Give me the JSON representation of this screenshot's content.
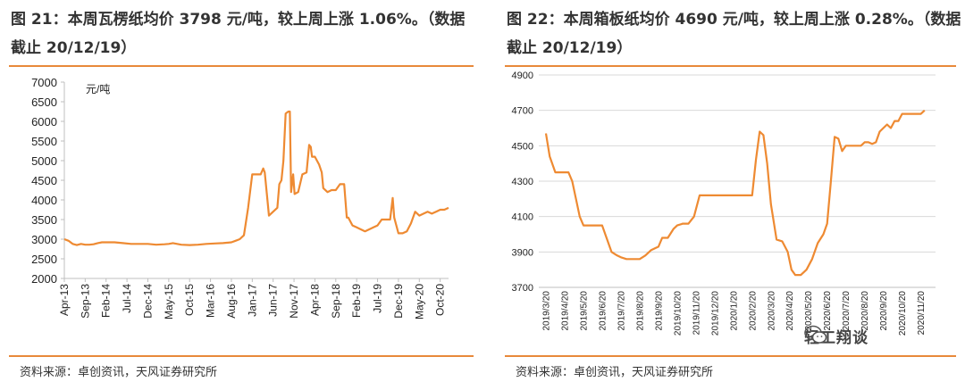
{
  "charts": [
    {
      "title": "图 21：本周瓦楞纸均价 3798 元/吨，较上周上涨 1.06%。（数据截止 20/12/19）",
      "source": "资料来源：卓创资讯，天风证券研究所",
      "unit": "元/吨"
    },
    {
      "title": "图 22：本周箱板纸均价 4690 元/吨，较上周上涨 0.28%。（数据截止 20/12/19）",
      "source": "资料来源：卓创资讯，天风证券研究所",
      "watermark": "轻工翔谈"
    }
  ],
  "colors": {
    "line": "#ee8a32",
    "rule": "#e8893a",
    "axis": "#bfbfbf",
    "grid": "#d9d9d9"
  },
  "icons": {
    "watermark": "wechat-icon"
  },
  "chart_data": [
    {
      "type": "line",
      "ylim": [
        2000,
        7000
      ],
      "yticks": [
        2000,
        2500,
        3000,
        3500,
        4000,
        4500,
        5000,
        5500,
        6000,
        6500,
        7000
      ],
      "xlim": [
        "2013-04",
        "2020-12"
      ],
      "xtick_labels": [
        "Apr-13",
        "Sep-13",
        "Feb-14",
        "Jul-14",
        "Dec-14",
        "May-15",
        "Oct-15",
        "Mar-16",
        "Aug-16",
        "Jan-17",
        "Jun-17",
        "Nov-17",
        "Apr-18",
        "Sep-18",
        "Feb-19",
        "Jul-19",
        "Dec-19",
        "May-20",
        "Oct-20"
      ],
      "grid": false,
      "series": [
        {
          "points": [
            [
              "2013-04",
              3000
            ],
            [
              "2013-05",
              2960
            ],
            [
              "2013-06",
              2880
            ],
            [
              "2013-07",
              2850
            ],
            [
              "2013-08",
              2880
            ],
            [
              "2013-09",
              2860
            ],
            [
              "2013-10",
              2860
            ],
            [
              "2013-11",
              2870
            ],
            [
              "2013-12",
              2900
            ],
            [
              "2014-01",
              2920
            ],
            [
              "2014-02",
              2920
            ],
            [
              "2014-04",
              2920
            ],
            [
              "2014-06",
              2900
            ],
            [
              "2014-08",
              2880
            ],
            [
              "2014-10",
              2880
            ],
            [
              "2014-12",
              2880
            ],
            [
              "2015-02",
              2860
            ],
            [
              "2015-04",
              2870
            ],
            [
              "2015-05",
              2880
            ],
            [
              "2015-06",
              2900
            ],
            [
              "2015-08",
              2860
            ],
            [
              "2015-10",
              2850
            ],
            [
              "2015-12",
              2860
            ],
            [
              "2016-02",
              2880
            ],
            [
              "2016-04",
              2890
            ],
            [
              "2016-06",
              2900
            ],
            [
              "2016-08",
              2920
            ],
            [
              "2016-09",
              2960
            ],
            [
              "2016-10",
              3000
            ],
            [
              "2016-11",
              3100
            ],
            [
              "2016-12",
              3800
            ],
            [
              "2017-01",
              4650
            ],
            [
              "2017-02",
              4650
            ],
            [
              "2017-03",
              4650
            ],
            [
              "2017-03-20",
              4800
            ],
            [
              "2017-04",
              4700
            ],
            [
              "2017-04-20",
              4000
            ],
            [
              "2017-05",
              3600
            ],
            [
              "2017-06",
              3700
            ],
            [
              "2017-07",
              3800
            ],
            [
              "2017-07-15",
              4400
            ],
            [
              "2017-08",
              4500
            ],
            [
              "2017-08-15",
              5000
            ],
            [
              "2017-09",
              6200
            ],
            [
              "2017-09-20",
              6250
            ],
            [
              "2017-10",
              6250
            ],
            [
              "2017-10-10",
              4200
            ],
            [
              "2017-10-25",
              4650
            ],
            [
              "2017-11-05",
              4150
            ],
            [
              "2017-12",
              4200
            ],
            [
              "2018-01",
              4650
            ],
            [
              "2018-02",
              4700
            ],
            [
              "2018-02-20",
              5400
            ],
            [
              "2018-03",
              5350
            ],
            [
              "2018-03-10",
              5100
            ],
            [
              "2018-04",
              5100
            ],
            [
              "2018-05",
              4900
            ],
            [
              "2018-05-20",
              4700
            ],
            [
              "2018-06",
              4300
            ],
            [
              "2018-07",
              4200
            ],
            [
              "2018-08",
              4250
            ],
            [
              "2018-09",
              4250
            ],
            [
              "2018-10",
              4400
            ],
            [
              "2018-11",
              4400
            ],
            [
              "2018-11-20",
              3550
            ],
            [
              "2018-12",
              3550
            ],
            [
              "2019-01",
              3350
            ],
            [
              "2019-02",
              3300
            ],
            [
              "2019-03",
              3250
            ],
            [
              "2019-04",
              3200
            ],
            [
              "2019-05",
              3250
            ],
            [
              "2019-06",
              3300
            ],
            [
              "2019-07",
              3350
            ],
            [
              "2019-08",
              3500
            ],
            [
              "2019-09",
              3500
            ],
            [
              "2019-10",
              3500
            ],
            [
              "2019-10-20",
              4050
            ],
            [
              "2019-11",
              3550
            ],
            [
              "2019-12",
              3150
            ],
            [
              "2020-01",
              3150
            ],
            [
              "2020-02",
              3200
            ],
            [
              "2020-03",
              3400
            ],
            [
              "2020-04",
              3700
            ],
            [
              "2020-05",
              3600
            ],
            [
              "2020-06",
              3650
            ],
            [
              "2020-07",
              3700
            ],
            [
              "2020-08",
              3650
            ],
            [
              "2020-09",
              3700
            ],
            [
              "2020-10",
              3750
            ],
            [
              "2020-11",
              3750
            ],
            [
              "2020-12",
              3798
            ]
          ]
        }
      ]
    },
    {
      "type": "line",
      "ylim": [
        3700,
        4900
      ],
      "yticks": [
        3700,
        3900,
        4100,
        4300,
        4500,
        4700,
        4900
      ],
      "xtick_labels": [
        "2019/3/20",
        "2019/4/20",
        "2019/5/20",
        "2019/6/20",
        "2019/7/20",
        "2019/8/20",
        "2019/9/20",
        "2019/10/20",
        "2019/11/20",
        "2019/12/20",
        "2020/1/20",
        "2020/2/20",
        "2020/3/20",
        "2020/4/20",
        "2020/5/20",
        "2020/6/20",
        "2020/7/20",
        "2020/8/20",
        "2020/9/20",
        "2020/10/20",
        "2020/11/20"
      ],
      "grid": true,
      "series": [
        {
          "points": [
            [
              0.0,
              4570
            ],
            [
              0.2,
              4440
            ],
            [
              0.5,
              4350
            ],
            [
              0.8,
              4350
            ],
            [
              1.0,
              4350
            ],
            [
              1.2,
              4350
            ],
            [
              1.4,
              4300
            ],
            [
              1.6,
              4200
            ],
            [
              1.8,
              4100
            ],
            [
              2.0,
              4050
            ],
            [
              2.3,
              4050
            ],
            [
              2.6,
              4050
            ],
            [
              3.0,
              4050
            ],
            [
              3.2,
              3990
            ],
            [
              3.5,
              3900
            ],
            [
              3.8,
              3880
            ],
            [
              4.0,
              3870
            ],
            [
              4.3,
              3860
            ],
            [
              4.6,
              3860
            ],
            [
              5.0,
              3860
            ],
            [
              5.3,
              3880
            ],
            [
              5.6,
              3910
            ],
            [
              6.0,
              3930
            ],
            [
              6.2,
              3980
            ],
            [
              6.5,
              3980
            ],
            [
              6.8,
              4030
            ],
            [
              7.0,
              4050
            ],
            [
              7.3,
              4060
            ],
            [
              7.6,
              4060
            ],
            [
              7.9,
              4100
            ],
            [
              8.2,
              4220
            ],
            [
              8.5,
              4220
            ],
            [
              9.0,
              4220
            ],
            [
              9.5,
              4220
            ],
            [
              10.0,
              4220
            ],
            [
              10.5,
              4220
            ],
            [
              11.0,
              4220
            ],
            [
              11.2,
              4420
            ],
            [
              11.4,
              4580
            ],
            [
              11.6,
              4560
            ],
            [
              11.8,
              4400
            ],
            [
              12.0,
              4170
            ],
            [
              12.3,
              3970
            ],
            [
              12.6,
              3960
            ],
            [
              12.9,
              3900
            ],
            [
              13.1,
              3800
            ],
            [
              13.3,
              3770
            ],
            [
              13.6,
              3770
            ],
            [
              13.9,
              3800
            ],
            [
              14.2,
              3860
            ],
            [
              14.5,
              3950
            ],
            [
              14.8,
              4000
            ],
            [
              15.0,
              4060
            ],
            [
              15.2,
              4300
            ],
            [
              15.4,
              4550
            ],
            [
              15.6,
              4540
            ],
            [
              15.8,
              4470
            ],
            [
              16.0,
              4500
            ],
            [
              16.5,
              4500
            ],
            [
              16.8,
              4500
            ],
            [
              17.0,
              4520
            ],
            [
              17.2,
              4520
            ],
            [
              17.4,
              4510
            ],
            [
              17.6,
              4520
            ],
            [
              17.8,
              4580
            ],
            [
              18.0,
              4600
            ],
            [
              18.2,
              4620
            ],
            [
              18.4,
              4600
            ],
            [
              18.6,
              4640
            ],
            [
              18.8,
              4640
            ],
            [
              19.0,
              4680
            ],
            [
              19.5,
              4680
            ],
            [
              19.8,
              4680
            ],
            [
              20.0,
              4680
            ],
            [
              20.2,
              4700
            ]
          ]
        }
      ]
    }
  ]
}
